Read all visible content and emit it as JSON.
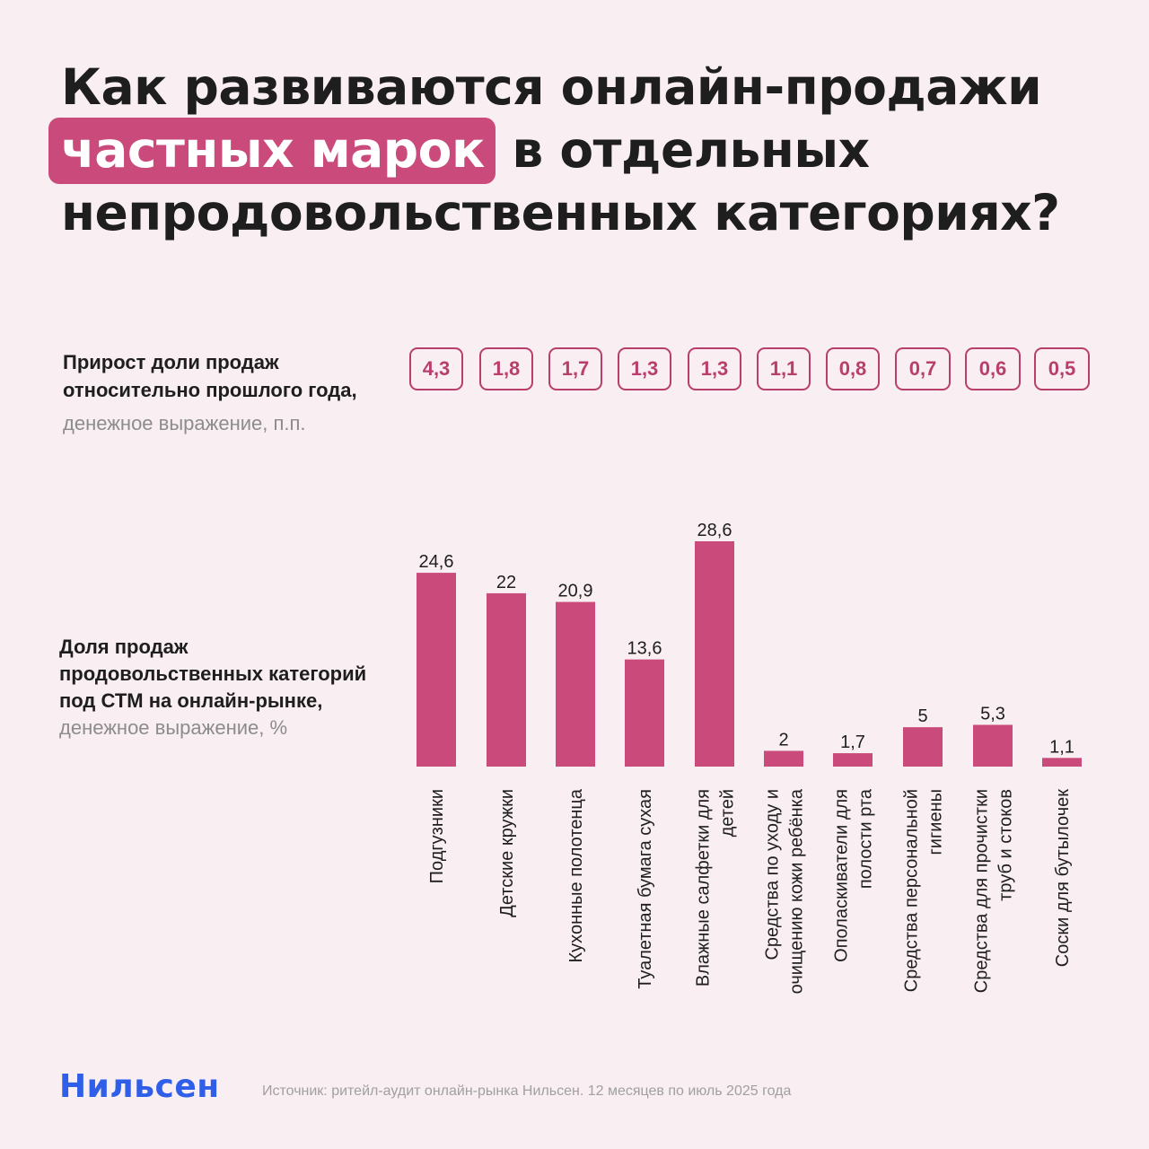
{
  "title": {
    "line1": "Как развиваются онлайн-продажи",
    "highlight": "частных марок",
    "line2_rest": " в отдельных",
    "line3": "непродовольственных категориях?"
  },
  "growth": {
    "label": "Прирост доли продаж относительно прошлого года,",
    "sublabel": "денежное выражение, п.п.",
    "values": [
      "4,3",
      "1,8",
      "1,7",
      "1,3",
      "1,3",
      "1,1",
      "0,8",
      "0,7",
      "0,6",
      "0,5"
    ]
  },
  "share": {
    "label": "Доля продаж продовольственных категорий под СТМ на онлайн-рынке,",
    "sublabel": "денежное выражение, %"
  },
  "chart_data": {
    "type": "bar",
    "categories": [
      [
        "Подгузники"
      ],
      [
        "Детские кружки"
      ],
      [
        "Кухонные полотенца"
      ],
      [
        "Туалетная бумага сухая"
      ],
      [
        "Влажные салфетки для",
        "детей"
      ],
      [
        "Средства по уходу и",
        "очищению кожи ребёнка"
      ],
      [
        "Ополаскиватели для",
        "полости рта"
      ],
      [
        "Средства персональной",
        "гигиены"
      ],
      [
        "Средства для прочистки",
        "труб и стоков"
      ],
      [
        "Соски для бутылочек"
      ]
    ],
    "values": [
      24.6,
      22,
      20.9,
      13.6,
      28.6,
      2,
      1.7,
      5,
      5.3,
      1.1
    ],
    "value_labels": [
      "24,6",
      "22",
      "20,9",
      "13,6",
      "28,6",
      "2",
      "1,7",
      "5",
      "5,3",
      "1,1"
    ],
    "ylim": [
      0,
      28.6
    ],
    "bar_color": "#c94a7b",
    "grid": false
  },
  "footer": {
    "logo": "Нильсен",
    "source": "Источник: ритейл-аудит онлайн-рынка Нильсен. 12 месяцев по июль 2025 года"
  }
}
